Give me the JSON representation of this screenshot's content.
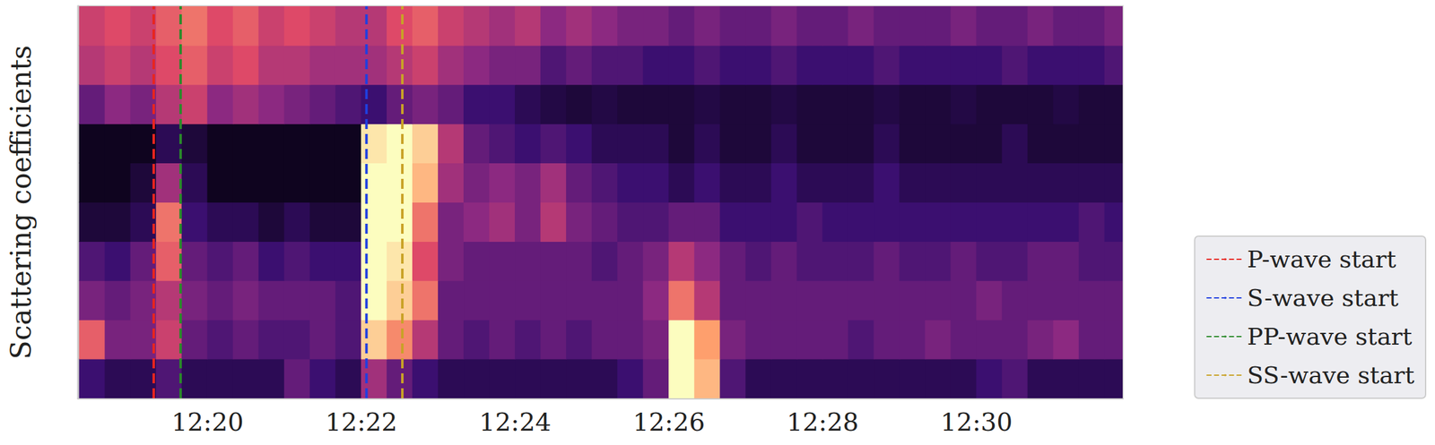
{
  "chart_data": {
    "type": "heatmap",
    "y_label": "Scattering coefficients",
    "tick_labels": "x",
    "legend": "lower right",
    "xlim": [
      44299,
      45114
    ],
    "xticks": [
      {
        "value": 44400,
        "label": "12:20"
      },
      {
        "value": 44520,
        "label": "12:22"
      },
      {
        "value": 44640,
        "label": "12:24"
      },
      {
        "value": 44760,
        "label": "12:26"
      },
      {
        "value": 44880,
        "label": "12:28"
      },
      {
        "value": 45000,
        "label": "12:30"
      }
    ],
    "value_range": [
      0,
      1
    ],
    "bins": [
      44300,
      44320,
      44340,
      44360,
      44380,
      44400,
      44420,
      44440,
      44460,
      44480,
      44500,
      44520,
      44540,
      44560,
      44580,
      44600,
      44620,
      44640,
      44660,
      44680,
      44700,
      44720,
      44740,
      44760,
      44780,
      44800,
      44820,
      44840,
      44860,
      44880,
      44900,
      44920,
      44940,
      44960,
      44980,
      45000,
      45020,
      45040,
      45060,
      45080,
      45100,
      45120
    ],
    "cells": [
      [
        0.2,
        0.15,
        0.15,
        0.25,
        0.15,
        0.15,
        0.15,
        0.15,
        0.3,
        0.2,
        0.15,
        0.45,
        0.3,
        0.2,
        0.15,
        0.15,
        0.15,
        0.15,
        0.15,
        0.15,
        0.15,
        0.2,
        0.3,
        1,
        0.85,
        0.25,
        0.15,
        0.15,
        0.15,
        0.15,
        0.15,
        0.15,
        0.15,
        0.15,
        0.15,
        0.2,
        0.25,
        0.15,
        0.15,
        0.15,
        0.15
      ],
      [
        0.65,
        0.35,
        0.35,
        0.55,
        0.3,
        0.25,
        0.3,
        0.25,
        0.25,
        0.3,
        0.25,
        0.9,
        0.75,
        0.5,
        0.3,
        0.25,
        0.3,
        0.25,
        0.3,
        0.25,
        0.3,
        0.3,
        0.35,
        1,
        0.8,
        0.35,
        0.3,
        0.3,
        0.3,
        0.3,
        0.25,
        0.3,
        0.3,
        0.35,
        0.3,
        0.3,
        0.3,
        0.35,
        0.4,
        0.3,
        0.3
      ],
      [
        0.35,
        0.3,
        0.35,
        0.5,
        0.35,
        0.3,
        0.35,
        0.3,
        0.3,
        0.3,
        0.25,
        1,
        0.9,
        0.7,
        0.3,
        0.3,
        0.3,
        0.3,
        0.3,
        0.3,
        0.3,
        0.3,
        0.4,
        0.7,
        0.5,
        0.3,
        0.3,
        0.3,
        0.3,
        0.3,
        0.3,
        0.3,
        0.3,
        0.3,
        0.3,
        0.35,
        0.3,
        0.3,
        0.3,
        0.3,
        0.3
      ],
      [
        0.25,
        0.2,
        0.3,
        0.65,
        0.3,
        0.25,
        0.3,
        0.2,
        0.25,
        0.2,
        0.2,
        1,
        0.95,
        0.6,
        0.35,
        0.3,
        0.3,
        0.3,
        0.3,
        0.3,
        0.25,
        0.3,
        0.35,
        0.5,
        0.4,
        0.3,
        0.25,
        0.3,
        0.25,
        0.25,
        0.25,
        0.3,
        0.25,
        0.25,
        0.3,
        0.25,
        0.25,
        0.3,
        0.3,
        0.25,
        0.25
      ],
      [
        0.1,
        0.1,
        0.15,
        0.7,
        0.2,
        0.15,
        0.15,
        0.1,
        0.15,
        0.1,
        0.1,
        1,
        1,
        0.7,
        0.35,
        0.4,
        0.45,
        0.35,
        0.5,
        0.35,
        0.3,
        0.25,
        0.25,
        0.3,
        0.3,
        0.2,
        0.2,
        0.2,
        0.25,
        0.2,
        0.2,
        0.2,
        0.2,
        0.2,
        0.2,
        0.2,
        0.2,
        0.2,
        0.2,
        0.25,
        0.2
      ],
      [
        0.05,
        0.05,
        0.1,
        0.45,
        0.15,
        0.05,
        0.05,
        0.05,
        0.05,
        0.05,
        0.05,
        1,
        1,
        0.85,
        0.45,
        0.35,
        0.4,
        0.35,
        0.45,
        0.3,
        0.25,
        0.2,
        0.2,
        0.15,
        0.2,
        0.15,
        0.15,
        0.2,
        0.15,
        0.15,
        0.15,
        0.2,
        0.15,
        0.15,
        0.15,
        0.15,
        0.15,
        0.15,
        0.15,
        0.15,
        0.15
      ],
      [
        0.05,
        0.05,
        0.05,
        0.15,
        0.1,
        0.05,
        0.05,
        0.05,
        0.05,
        0.05,
        0.05,
        0.95,
        1,
        0.9,
        0.5,
        0.3,
        0.25,
        0.2,
        0.25,
        0.2,
        0.15,
        0.15,
        0.15,
        0.1,
        0.15,
        0.1,
        0.1,
        0.15,
        0.1,
        0.1,
        0.1,
        0.15,
        0.1,
        0.1,
        0.1,
        0.1,
        0.15,
        0.1,
        0.1,
        0.1,
        0.1
      ],
      [
        0.3,
        0.4,
        0.35,
        0.5,
        0.55,
        0.4,
        0.45,
        0.4,
        0.35,
        0.3,
        0.25,
        0.2,
        0.3,
        0.35,
        0.3,
        0.2,
        0.2,
        0.15,
        0.12,
        0.1,
        0.12,
        0.1,
        0.1,
        0.1,
        0.12,
        0.1,
        0.1,
        0.12,
        0.1,
        0.1,
        0.1,
        0.12,
        0.1,
        0.1,
        0.12,
        0.1,
        0.1,
        0.1,
        0.12,
        0.1,
        0.1
      ],
      [
        0.5,
        0.55,
        0.5,
        0.6,
        0.65,
        0.55,
        0.6,
        0.5,
        0.5,
        0.45,
        0.45,
        0.45,
        0.5,
        0.55,
        0.45,
        0.4,
        0.35,
        0.35,
        0.25,
        0.3,
        0.25,
        0.25,
        0.2,
        0.2,
        0.25,
        0.2,
        0.2,
        0.25,
        0.2,
        0.2,
        0.2,
        0.25,
        0.2,
        0.2,
        0.2,
        0.2,
        0.25,
        0.2,
        0.2,
        0.2,
        0.25
      ],
      [
        0.55,
        0.6,
        0.55,
        0.65,
        0.7,
        0.6,
        0.65,
        0.55,
        0.6,
        0.55,
        0.5,
        0.5,
        0.6,
        0.65,
        0.55,
        0.5,
        0.45,
        0.5,
        0.4,
        0.45,
        0.4,
        0.35,
        0.35,
        0.3,
        0.35,
        0.3,
        0.3,
        0.35,
        0.3,
        0.3,
        0.35,
        0.3,
        0.3,
        0.3,
        0.35,
        0.3,
        0.3,
        0.35,
        0.3,
        0.3,
        0.35
      ]
    ],
    "events": [
      {
        "name": "P-wave start",
        "time": 44358,
        "color": "#e8251f",
        "line_style": "dashed"
      },
      {
        "name": "S-wave start",
        "time": 44524,
        "color": "#1f3fe0",
        "line_style": "dashed"
      },
      {
        "name": "PP-wave start",
        "time": 44379,
        "color": "#2a8a2a",
        "line_style": "dashed"
      },
      {
        "name": "SS-wave start",
        "time": 44552,
        "color": "#c9a227",
        "line_style": "dashed"
      }
    ]
  }
}
